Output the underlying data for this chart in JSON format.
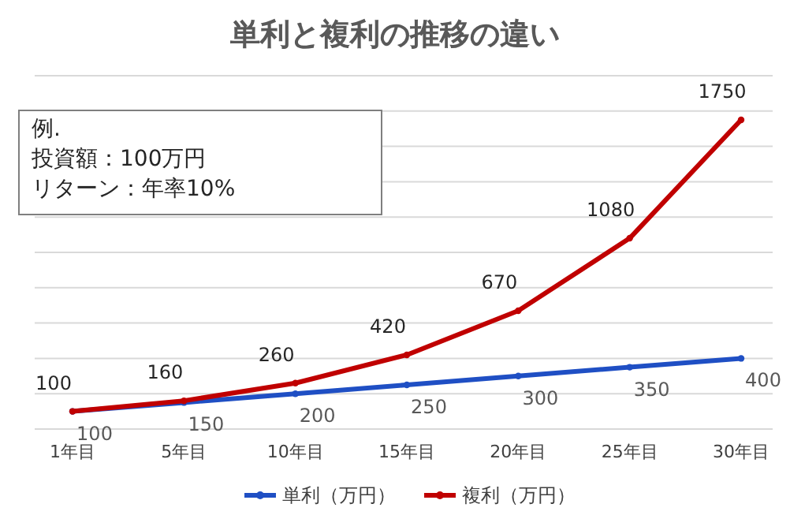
{
  "chart_data": {
    "type": "line",
    "title": "単利と複利の推移の違い",
    "categories": [
      "1年目",
      "5年目",
      "10年目",
      "15年目",
      "20年目",
      "25年目",
      "30年目"
    ],
    "series": [
      {
        "name": "単利（万円）",
        "color": "#1f4fc4",
        "values": [
          100,
          150,
          200,
          250,
          300,
          350,
          400
        ]
      },
      {
        "name": "複利（万円）",
        "color": "#c00000",
        "values": [
          100,
          160,
          260,
          420,
          670,
          1080,
          1750
        ]
      }
    ],
    "ylim": [
      0,
      2000
    ],
    "yticks": [
      {
        "value": 0,
        "label": null
      },
      {
        "value": 200,
        "label": null
      },
      {
        "value": 400,
        "label": null
      },
      {
        "value": 600,
        "label": null
      },
      {
        "value": 800,
        "label": null
      },
      {
        "value": 1000,
        "label": null
      },
      {
        "value": 1200,
        "label": null
      },
      {
        "value": 1400,
        "label": null
      },
      {
        "value": 1600,
        "label": null
      },
      {
        "value": 1800,
        "label": null
      },
      {
        "value": 2000,
        "label": null
      }
    ],
    "tick_labels": "x",
    "grid": "y",
    "legend": "bottom",
    "marker": "circle",
    "line_style": "solid",
    "data_labels": true,
    "annotations": [
      "例.",
      "投資額：100万円",
      "リターン：年率10%"
    ]
  }
}
